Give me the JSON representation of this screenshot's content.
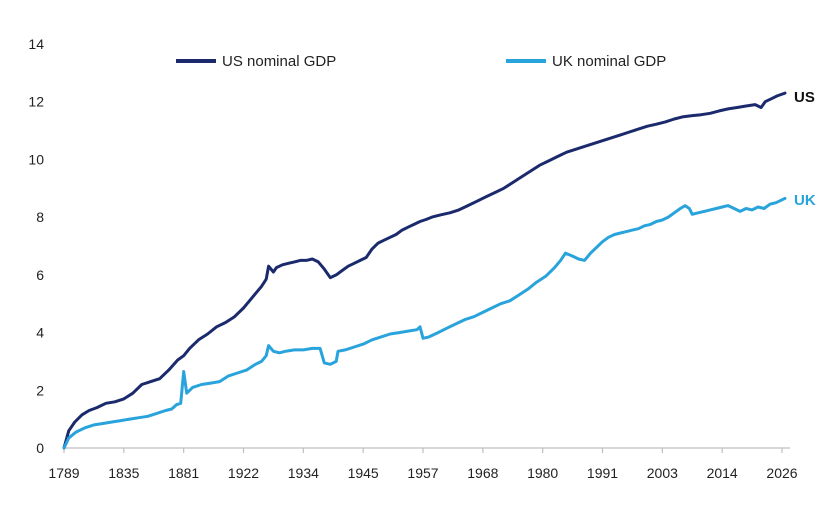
{
  "chart_data": {
    "type": "line",
    "title": "",
    "xlabel": "",
    "ylabel": "",
    "ylim": [
      0,
      14
    ],
    "yticks": [
      "0",
      "2",
      "4",
      "6",
      "8",
      "10",
      "12",
      "14"
    ],
    "xticks": [
      "1789",
      "1835",
      "1881",
      "1922",
      "1934",
      "1945",
      "1957",
      "1968",
      "1980",
      "1991",
      "2003",
      "2014",
      "2026"
    ],
    "grid": false,
    "legend_position": "top",
    "series": [
      {
        "name": "US nominal GDP",
        "end_label": "US",
        "color": "#1a2a6c",
        "points": [
          [
            0,
            0.0
          ],
          [
            0.08,
            0.6
          ],
          [
            0.18,
            0.9
          ],
          [
            0.3,
            1.15
          ],
          [
            0.42,
            1.3
          ],
          [
            0.55,
            1.4
          ],
          [
            0.7,
            1.55
          ],
          [
            0.85,
            1.6
          ],
          [
            1.0,
            1.7
          ],
          [
            1.15,
            1.9
          ],
          [
            1.3,
            2.2
          ],
          [
            1.45,
            2.3
          ],
          [
            1.6,
            2.4
          ],
          [
            1.75,
            2.7
          ],
          [
            1.9,
            3.05
          ],
          [
            2.0,
            3.2
          ],
          [
            2.1,
            3.45
          ],
          [
            2.25,
            3.75
          ],
          [
            2.4,
            3.95
          ],
          [
            2.55,
            4.2
          ],
          [
            2.7,
            4.35
          ],
          [
            2.85,
            4.55
          ],
          [
            3.0,
            4.85
          ],
          [
            3.1,
            5.1
          ],
          [
            3.2,
            5.35
          ],
          [
            3.3,
            5.6
          ],
          [
            3.38,
            5.85
          ],
          [
            3.42,
            6.3
          ],
          [
            3.5,
            6.1
          ],
          [
            3.55,
            6.25
          ],
          [
            3.65,
            6.35
          ],
          [
            3.75,
            6.4
          ],
          [
            3.85,
            6.45
          ],
          [
            3.95,
            6.5
          ],
          [
            4.05,
            6.5
          ],
          [
            4.15,
            6.55
          ],
          [
            4.25,
            6.45
          ],
          [
            4.35,
            6.2
          ],
          [
            4.45,
            5.9
          ],
          [
            4.55,
            6.0
          ],
          [
            4.65,
            6.15
          ],
          [
            4.75,
            6.3
          ],
          [
            4.85,
            6.4
          ],
          [
            4.95,
            6.5
          ],
          [
            5.05,
            6.6
          ],
          [
            5.15,
            6.9
          ],
          [
            5.25,
            7.1
          ],
          [
            5.35,
            7.2
          ],
          [
            5.45,
            7.3
          ],
          [
            5.55,
            7.4
          ],
          [
            5.65,
            7.55
          ],
          [
            5.75,
            7.65
          ],
          [
            5.85,
            7.75
          ],
          [
            5.95,
            7.85
          ],
          [
            6.05,
            7.92
          ],
          [
            6.15,
            8.0
          ],
          [
            6.3,
            8.08
          ],
          [
            6.45,
            8.15
          ],
          [
            6.6,
            8.25
          ],
          [
            6.75,
            8.4
          ],
          [
            6.9,
            8.55
          ],
          [
            7.05,
            8.7
          ],
          [
            7.2,
            8.85
          ],
          [
            7.35,
            9.0
          ],
          [
            7.5,
            9.2
          ],
          [
            7.65,
            9.4
          ],
          [
            7.8,
            9.6
          ],
          [
            7.95,
            9.8
          ],
          [
            8.1,
            9.95
          ],
          [
            8.25,
            10.1
          ],
          [
            8.4,
            10.25
          ],
          [
            8.55,
            10.35
          ],
          [
            8.7,
            10.45
          ],
          [
            8.85,
            10.55
          ],
          [
            9.0,
            10.65
          ],
          [
            9.15,
            10.75
          ],
          [
            9.3,
            10.85
          ],
          [
            9.45,
            10.95
          ],
          [
            9.6,
            11.05
          ],
          [
            9.75,
            11.15
          ],
          [
            9.9,
            11.22
          ],
          [
            10.05,
            11.3
          ],
          [
            10.2,
            11.4
          ],
          [
            10.35,
            11.48
          ],
          [
            10.5,
            11.52
          ],
          [
            10.65,
            11.55
          ],
          [
            10.8,
            11.6
          ],
          [
            10.95,
            11.68
          ],
          [
            11.1,
            11.75
          ],
          [
            11.25,
            11.8
          ],
          [
            11.4,
            11.85
          ],
          [
            11.55,
            11.9
          ],
          [
            11.65,
            11.8
          ],
          [
            11.72,
            12.0
          ],
          [
            11.82,
            12.1
          ],
          [
            11.92,
            12.2
          ],
          [
            12.05,
            12.3
          ]
        ]
      },
      {
        "name": "UK nominal GDP",
        "end_label": "UK",
        "color": "#29a3dc",
        "points": [
          [
            0,
            0.0
          ],
          [
            0.08,
            0.35
          ],
          [
            0.2,
            0.55
          ],
          [
            0.35,
            0.7
          ],
          [
            0.5,
            0.8
          ],
          [
            0.65,
            0.85
          ],
          [
            0.8,
            0.9
          ],
          [
            0.95,
            0.95
          ],
          [
            1.1,
            1.0
          ],
          [
            1.25,
            1.05
          ],
          [
            1.4,
            1.1
          ],
          [
            1.55,
            1.2
          ],
          [
            1.7,
            1.3
          ],
          [
            1.8,
            1.35
          ],
          [
            1.88,
            1.5
          ],
          [
            1.95,
            1.55
          ],
          [
            2.0,
            2.65
          ],
          [
            2.05,
            1.9
          ],
          [
            2.15,
            2.1
          ],
          [
            2.3,
            2.2
          ],
          [
            2.45,
            2.25
          ],
          [
            2.6,
            2.3
          ],
          [
            2.75,
            2.5
          ],
          [
            2.9,
            2.6
          ],
          [
            3.05,
            2.7
          ],
          [
            3.2,
            2.9
          ],
          [
            3.3,
            3.0
          ],
          [
            3.38,
            3.2
          ],
          [
            3.42,
            3.55
          ],
          [
            3.5,
            3.35
          ],
          [
            3.6,
            3.3
          ],
          [
            3.7,
            3.35
          ],
          [
            3.85,
            3.4
          ],
          [
            4.0,
            3.4
          ],
          [
            4.15,
            3.45
          ],
          [
            4.28,
            3.45
          ],
          [
            4.35,
            2.95
          ],
          [
            4.45,
            2.9
          ],
          [
            4.55,
            3.0
          ],
          [
            4.58,
            3.35
          ],
          [
            4.7,
            3.4
          ],
          [
            4.85,
            3.5
          ],
          [
            5.0,
            3.6
          ],
          [
            5.15,
            3.75
          ],
          [
            5.3,
            3.85
          ],
          [
            5.45,
            3.95
          ],
          [
            5.6,
            4.0
          ],
          [
            5.75,
            4.05
          ],
          [
            5.9,
            4.1
          ],
          [
            5.95,
            4.2
          ],
          [
            6.0,
            3.8
          ],
          [
            6.1,
            3.85
          ],
          [
            6.25,
            4.0
          ],
          [
            6.4,
            4.15
          ],
          [
            6.55,
            4.3
          ],
          [
            6.7,
            4.45
          ],
          [
            6.85,
            4.55
          ],
          [
            7.0,
            4.7
          ],
          [
            7.15,
            4.85
          ],
          [
            7.3,
            5.0
          ],
          [
            7.45,
            5.1
          ],
          [
            7.6,
            5.3
          ],
          [
            7.75,
            5.5
          ],
          [
            7.9,
            5.75
          ],
          [
            8.05,
            5.95
          ],
          [
            8.2,
            6.25
          ],
          [
            8.3,
            6.5
          ],
          [
            8.38,
            6.75
          ],
          [
            8.5,
            6.65
          ],
          [
            8.6,
            6.55
          ],
          [
            8.7,
            6.5
          ],
          [
            8.8,
            6.75
          ],
          [
            8.9,
            6.95
          ],
          [
            9.0,
            7.15
          ],
          [
            9.1,
            7.3
          ],
          [
            9.2,
            7.4
          ],
          [
            9.3,
            7.45
          ],
          [
            9.4,
            7.5
          ],
          [
            9.5,
            7.55
          ],
          [
            9.6,
            7.6
          ],
          [
            9.7,
            7.7
          ],
          [
            9.8,
            7.75
          ],
          [
            9.9,
            7.85
          ],
          [
            10.0,
            7.9
          ],
          [
            10.1,
            8.0
          ],
          [
            10.2,
            8.15
          ],
          [
            10.3,
            8.3
          ],
          [
            10.38,
            8.4
          ],
          [
            10.45,
            8.3
          ],
          [
            10.5,
            8.1
          ],
          [
            10.6,
            8.15
          ],
          [
            10.7,
            8.2
          ],
          [
            10.8,
            8.25
          ],
          [
            10.9,
            8.3
          ],
          [
            11.0,
            8.35
          ],
          [
            11.1,
            8.4
          ],
          [
            11.2,
            8.3
          ],
          [
            11.3,
            8.2
          ],
          [
            11.4,
            8.3
          ],
          [
            11.5,
            8.25
          ],
          [
            11.6,
            8.35
          ],
          [
            11.7,
            8.3
          ],
          [
            11.8,
            8.45
          ],
          [
            11.9,
            8.5
          ],
          [
            12.0,
            8.6
          ],
          [
            12.05,
            8.65
          ]
        ]
      }
    ]
  }
}
